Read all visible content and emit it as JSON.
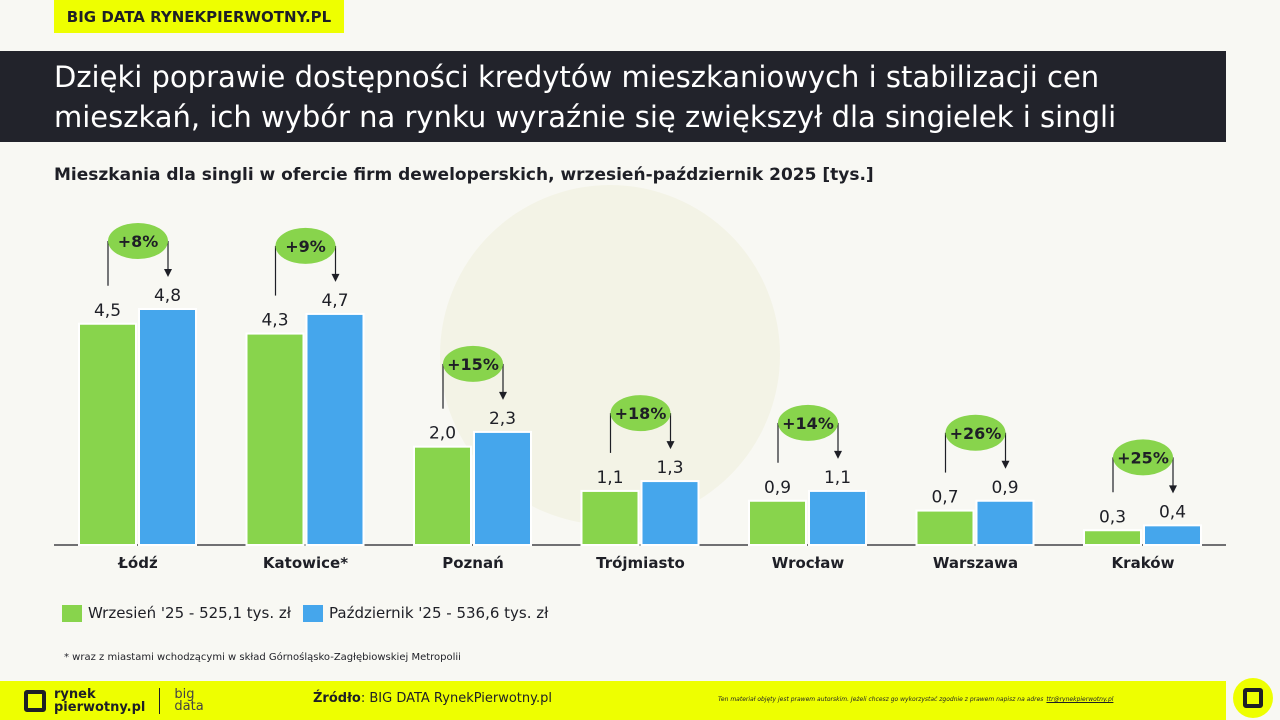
{
  "tag": "BIG DATA RYNEKPIERWOTNY.PL",
  "title_line1": "Dzięki poprawie dostępności kredytów mieszkaniowych i stabilizacji cen",
  "title_line2": "mieszkań, ich wybór na rynku wyraźnie się zwiększył dla singielek i singli",
  "chart_data": {
    "type": "bar",
    "title": "Mieszkania dla singli w ofercie firm deweloperskich, wrzesień-październik 2025 [tys.]",
    "categories": [
      "Łódź",
      "Katowice*",
      "Poznań",
      "Trójmiasto",
      "Wrocław",
      "Warszawa",
      "Kraków"
    ],
    "series": [
      {
        "name": "Wrzesień '25 - 525,1 tys. zł",
        "color": "#88d44c",
        "values": [
          4.5,
          4.3,
          2.0,
          1.1,
          0.9,
          0.7,
          0.3
        ],
        "labels": [
          "4,5",
          "4,3",
          "2,0",
          "1,1",
          "0,9",
          "0,7",
          "0,3"
        ]
      },
      {
        "name": "Październik '25 - 536,6 tys. zł",
        "color": "#45a6ec",
        "values": [
          4.8,
          4.7,
          2.3,
          1.3,
          1.1,
          0.9,
          0.4
        ],
        "labels": [
          "4,8",
          "4,7",
          "2,3",
          "1,3",
          "1,1",
          "0,9",
          "0,4"
        ]
      }
    ],
    "changes": [
      "+8%",
      "+9%",
      "+15%",
      "+18%",
      "+14%",
      "+26%",
      "+25%"
    ],
    "ylim": [
      0,
      4.8
    ],
    "grid": false,
    "legend": "bottom-left"
  },
  "footnote": "* wraz z miastami wchodzącymi w skład Górnośląsko-Zagłębiowskiej Metropolii",
  "footer": {
    "logo_line1": "rynek",
    "logo_line2": "pierwotny.pl",
    "bd1": "big",
    "bd2": "data",
    "source_label": "Źródło",
    "source": ": BIG DATA RynekPierwotny.pl",
    "copyright": "Ten materiał objęty jest prawem autorskim. Jeżeli chcesz go wykorzystać zgodnie z prawem napisz na adres",
    "email": "ttr@rynekpierwotny.pl"
  }
}
